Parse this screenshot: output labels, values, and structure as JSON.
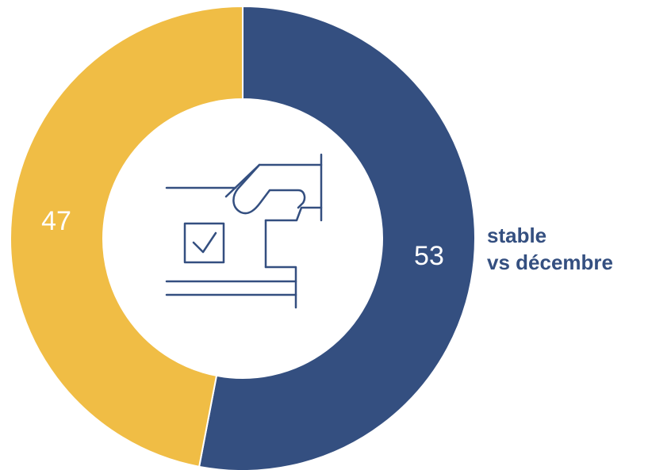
{
  "chart_data": {
    "type": "pie",
    "donut": true,
    "slices": [
      {
        "value": 53,
        "label": "53",
        "color": "#344f80"
      },
      {
        "value": 47,
        "label": "47",
        "color": "#f0bd45"
      }
    ],
    "center_icon": "ballot-box-vote-icon",
    "annotation": {
      "line1": "stable",
      "line2": "vs décembre",
      "color": "#344f80"
    }
  }
}
